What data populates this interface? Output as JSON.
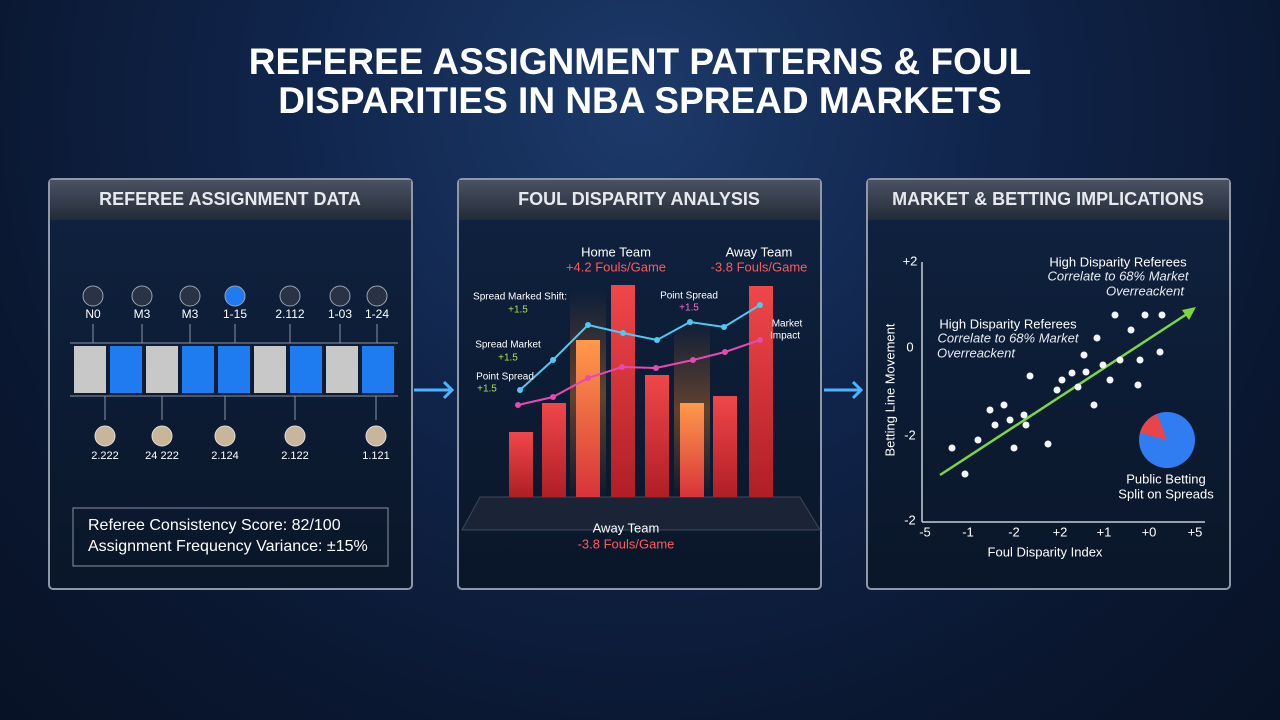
{
  "header": {
    "title": "REFEREE ASSIGNMENT PATTERNS & FOUL DISPARITIES IN NBA SPREAD MARKETS"
  },
  "panels": [
    {
      "title": "REFEREE ASSIGNMENT DATA",
      "top_labels": [
        "N0",
        "M3",
        "M3",
        "1-15",
        "2.112",
        "1-03",
        "1-24"
      ],
      "bottom_labels": [
        "2.222",
        "24 222",
        "2.124",
        "2.122",
        "1.121"
      ],
      "stats": [
        "Referee Consistency Score: 82/100",
        "Assignment Frequency Variance: ±15%"
      ]
    },
    {
      "title": "FOUL DISPARITY ANALYSIS",
      "home_label": "Home Team",
      "home_value": "+4.2 Fouls/Game",
      "away_label": "Away Team",
      "away_value": "-3.8 Fouls/Game",
      "annotations": [
        "Spread Marked Shift:",
        "+1.5",
        "Point Spread",
        "+1.5",
        "Spread Market",
        "+1.5",
        "Point Spread",
        "+1.5",
        "Market",
        "Impact"
      ],
      "bottom_label": "Away Team",
      "bottom_value": "-3.8 Fouls/Game"
    },
    {
      "title": "MARKET & BETTING IMPLICATIONS",
      "annotation_top": [
        "High Disparity Referees",
        "Correlate to 68% Market",
        "Overreackent"
      ],
      "annotation_mid": [
        "High Disparity Referees",
        "Correlate to 68% Market",
        "Overreackent"
      ],
      "y_label": "Betting Line Movement",
      "y_ticks": [
        "+2",
        "0",
        "-2",
        "-2"
      ],
      "x_ticks": [
        "-5",
        "-1",
        "-2",
        "+2",
        "+1",
        "+0",
        "+5"
      ],
      "x_label": "Foul Disparity Index",
      "pie_label": [
        "Public Betting",
        "Split on Spreads"
      ]
    }
  ]
}
